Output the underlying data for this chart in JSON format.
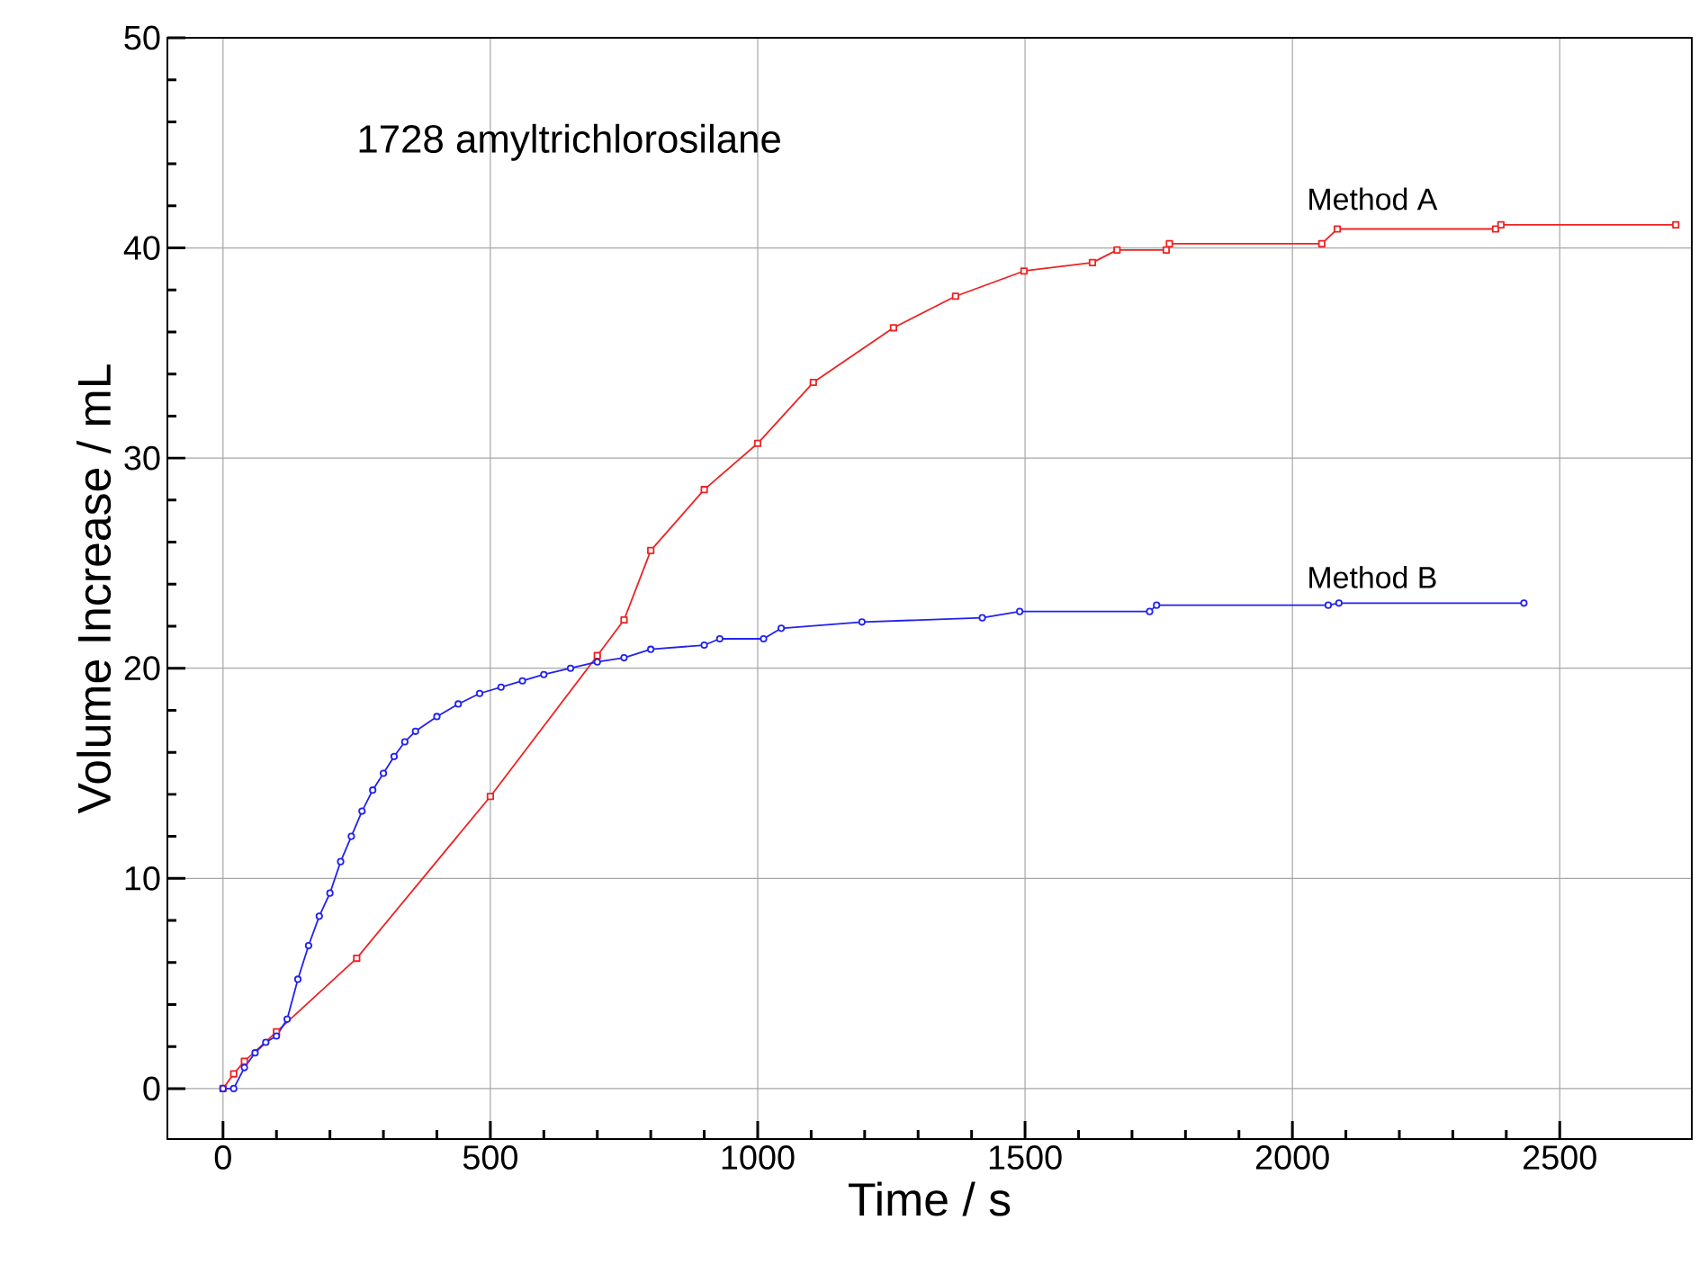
{
  "chart_data": {
    "type": "line",
    "xlabel": "Time / s",
    "ylabel": "Volume Increase / mL",
    "annotations": [
      "1728 amyltrichlorosilane"
    ],
    "xlim": [
      -104,
      2747
    ],
    "ylim": [
      -2.4,
      50
    ],
    "xticks": [
      0,
      500,
      1000,
      1500,
      2000,
      2500
    ],
    "yticks": [
      0,
      10,
      20,
      30,
      40,
      50
    ],
    "grid": true,
    "line_style": "solid",
    "series": [
      {
        "name": "Method A",
        "color": "#ee2222",
        "marker": "square",
        "x": [
          0,
          20,
          40,
          100,
          250,
          500,
          700,
          750,
          800,
          900,
          1000,
          1104,
          1254,
          1370,
          1498,
          1626,
          1672,
          1764,
          1770,
          2055,
          2084,
          2380,
          2390,
          2717
        ],
        "values": [
          0,
          0.7,
          1.3,
          2.7,
          6.2,
          13.9,
          20.6,
          22.3,
          25.6,
          28.5,
          30.7,
          33.6,
          36.2,
          37.7,
          38.9,
          39.3,
          39.9,
          39.9,
          40.2,
          40.2,
          40.9,
          40.9,
          41.1,
          41.1
        ]
      },
      {
        "name": "Method B",
        "color": "#2222ee",
        "marker": "circle",
        "x": [
          0,
          20,
          40,
          60,
          80,
          100,
          120,
          140,
          160,
          180,
          200,
          220,
          240,
          260,
          280,
          300,
          320,
          340,
          360,
          400,
          440,
          480,
          520,
          560,
          600,
          650,
          700,
          750,
          800,
          900,
          929,
          1011,
          1044,
          1195,
          1420,
          1490,
          1733,
          1746,
          2067,
          2087,
          2433
        ],
        "values": [
          0,
          0,
          1,
          1.7,
          2.2,
          2.5,
          3.3,
          5.2,
          6.8,
          8.2,
          9.3,
          10.8,
          12,
          13.2,
          14.2,
          15,
          15.8,
          16.5,
          17,
          17.7,
          18.3,
          18.8,
          19.1,
          19.4,
          19.7,
          20.0,
          20.3,
          20.5,
          20.9,
          21.1,
          21.4,
          21.4,
          21.9,
          22.2,
          22.4,
          22.7,
          22.7,
          23.0,
          23.0,
          23.1,
          23.1
        ]
      }
    ]
  }
}
